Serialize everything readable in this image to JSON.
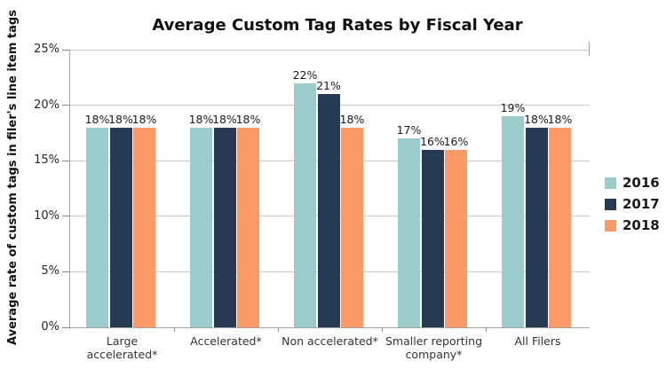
{
  "chart_data": {
    "type": "bar",
    "title": "Average Custom Tag Rates by Fiscal Year",
    "xlabel": "",
    "ylabel": "Average rate of custom tags in filer's line item tags",
    "categories": [
      "Large accelerated*",
      "Accelerated*",
      "Non accelerated*",
      "Smaller reporting company*",
      "All Filers"
    ],
    "series": [
      {
        "name": "2016",
        "color": "#9ACCCB",
        "values": [
          18,
          18,
          22,
          17,
          19
        ],
        "labels": [
          "18%",
          "18%",
          "22%",
          "17%",
          "19%"
        ]
      },
      {
        "name": "2017",
        "color": "#263A54",
        "values": [
          18,
          18,
          21,
          16,
          18
        ],
        "labels": [
          "18%",
          "18%",
          "21%",
          "16%",
          "18%"
        ]
      },
      {
        "name": "2018",
        "color": "#FB9A66",
        "values": [
          18,
          18,
          18,
          16,
          18
        ],
        "labels": [
          "18%",
          "18%",
          "18%",
          "16%",
          "18%"
        ]
      }
    ],
    "ylim": [
      0,
      25
    ],
    "yticks": [
      0,
      5,
      10,
      15,
      20,
      25
    ],
    "ytick_labels": [
      "0%",
      "5%",
      "10%",
      "15%",
      "20%",
      "25%"
    ],
    "grid": true,
    "legend_position": "right",
    "value_label_suffix": "%"
  }
}
